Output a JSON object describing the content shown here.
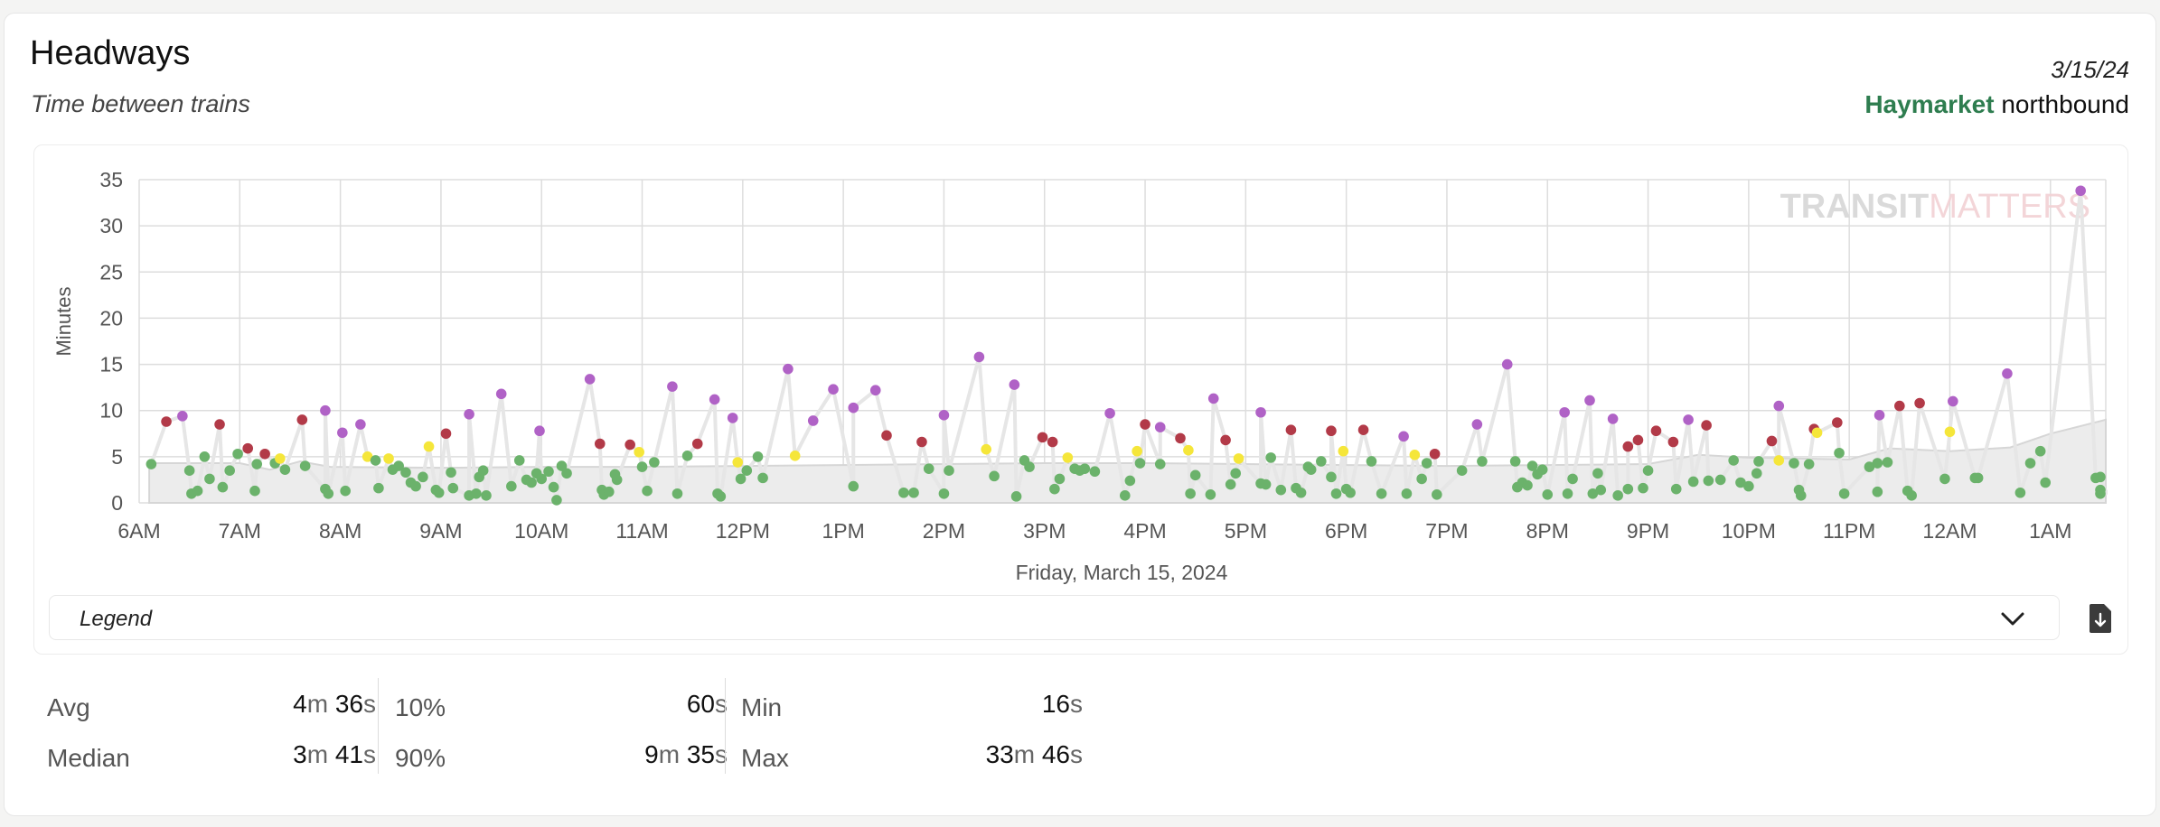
{
  "header": {
    "title": "Headways",
    "subtitle": "Time between trains",
    "date": "3/15/24",
    "station": "Haymarket",
    "direction": "northbound"
  },
  "watermark": {
    "strong": "TRANSIT",
    "light": "MATTERS"
  },
  "legend": {
    "label": "Legend"
  },
  "colors": {
    "green": "#6bb26b",
    "yellow": "#f5e63a",
    "red": "#b23a48",
    "purple": "#b062c6",
    "line": "#e4e4e4",
    "band": "#ececec",
    "benchmark": "#cfcfcf",
    "accent": "#2e7d4f"
  },
  "icons": {
    "legend_toggle": "chevron-down-icon",
    "download": "file-download-icon"
  },
  "stats": [
    {
      "label": "Avg",
      "value": "4",
      "unit": "m",
      "value2": "36",
      "unit2": "s"
    },
    {
      "label": "Median",
      "value": "3",
      "unit": "m",
      "value2": "41",
      "unit2": "s"
    },
    {
      "label": "10%",
      "value": "60",
      "unit": "s"
    },
    {
      "label": "90%",
      "value": "9",
      "unit": "m",
      "value2": "35",
      "unit2": "s"
    },
    {
      "label": "Min",
      "value": "16",
      "unit": "s"
    },
    {
      "label": "Max",
      "value": "33",
      "unit": "m",
      "value2": "46",
      "unit2": "s"
    }
  ],
  "chart_data": {
    "type": "scatter",
    "title": "",
    "xlabel": "Friday, March 15, 2024",
    "ylabel": "Minutes",
    "x_ticks": [
      "6AM",
      "7AM",
      "8AM",
      "9AM",
      "10AM",
      "11AM",
      "12PM",
      "1PM",
      "2PM",
      "3PM",
      "4PM",
      "5PM",
      "6PM",
      "7PM",
      "8PM",
      "9PM",
      "10PM",
      "11PM",
      "12AM",
      "1AM"
    ],
    "y_ticks": [
      0,
      5,
      10,
      15,
      20,
      25,
      30,
      35
    ],
    "xlim": [
      6.0,
      25.55
    ],
    "ylim": [
      0,
      35
    ],
    "grid": true,
    "legend": "collapsed-below",
    "benchmark": [
      [
        6.1,
        4.3
      ],
      [
        7.0,
        4.3
      ],
      [
        7.3,
        3.6
      ],
      [
        7.6,
        4.5
      ],
      [
        7.9,
        3.9
      ],
      [
        9.0,
        3.8
      ],
      [
        10.0,
        3.9
      ],
      [
        11.0,
        3.9
      ],
      [
        12.0,
        4.0
      ],
      [
        13.0,
        4.1
      ],
      [
        14.0,
        4.2
      ],
      [
        15.0,
        4.3
      ],
      [
        16.0,
        4.3
      ],
      [
        17.0,
        4.2
      ],
      [
        18.0,
        4.1
      ],
      [
        19.0,
        4.0
      ],
      [
        20.0,
        4.1
      ],
      [
        21.0,
        4.2
      ],
      [
        21.5,
        5.2
      ],
      [
        22.0,
        4.9
      ],
      [
        23.0,
        4.7
      ],
      [
        23.4,
        5.9
      ],
      [
        24.0,
        5.6
      ],
      [
        24.6,
        6.0
      ],
      [
        25.0,
        7.5
      ],
      [
        25.55,
        9.0
      ]
    ],
    "series": [
      {
        "name": "Green",
        "color": "green",
        "points": [
          [
            6.12,
            4.2
          ],
          [
            6.5,
            3.5
          ],
          [
            6.52,
            1.0
          ],
          [
            6.58,
            1.3
          ],
          [
            6.65,
            5.0
          ],
          [
            6.7,
            2.6
          ],
          [
            6.83,
            1.7
          ],
          [
            6.9,
            3.5
          ],
          [
            6.98,
            5.3
          ],
          [
            7.15,
            1.3
          ],
          [
            7.17,
            4.2
          ],
          [
            7.35,
            4.3
          ],
          [
            7.45,
            3.6
          ],
          [
            7.65,
            4.0
          ],
          [
            7.85,
            1.5
          ],
          [
            7.88,
            1.0
          ],
          [
            8.05,
            1.3
          ],
          [
            8.35,
            4.6
          ],
          [
            8.38,
            1.6
          ],
          [
            8.52,
            3.6
          ],
          [
            8.58,
            4.0
          ],
          [
            8.65,
            3.3
          ],
          [
            8.7,
            2.2
          ],
          [
            8.75,
            1.8
          ],
          [
            8.82,
            2.8
          ],
          [
            8.95,
            1.4
          ],
          [
            8.98,
            1.1
          ],
          [
            9.1,
            3.3
          ],
          [
            9.12,
            1.6
          ],
          [
            9.28,
            0.8
          ],
          [
            9.35,
            1.0
          ],
          [
            9.38,
            2.8
          ],
          [
            9.42,
            3.5
          ],
          [
            9.45,
            0.8
          ],
          [
            9.7,
            1.8
          ],
          [
            9.78,
            4.6
          ],
          [
            9.85,
            2.5
          ],
          [
            9.9,
            2.2
          ],
          [
            9.95,
            3.2
          ],
          [
            10.0,
            2.6
          ],
          [
            10.07,
            3.4
          ],
          [
            10.12,
            1.7
          ],
          [
            10.15,
            0.3
          ],
          [
            10.2,
            4.0
          ],
          [
            10.25,
            3.2
          ],
          [
            10.6,
            1.4
          ],
          [
            10.62,
            0.9
          ],
          [
            10.67,
            1.2
          ],
          [
            10.73,
            3.1
          ],
          [
            10.75,
            2.5
          ],
          [
            11.0,
            3.9
          ],
          [
            11.05,
            1.3
          ],
          [
            11.12,
            4.4
          ],
          [
            11.35,
            1.0
          ],
          [
            11.45,
            5.1
          ],
          [
            11.75,
            1.0
          ],
          [
            11.78,
            0.7
          ],
          [
            11.98,
            2.6
          ],
          [
            12.04,
            3.5
          ],
          [
            12.15,
            5.0
          ],
          [
            12.2,
            2.7
          ],
          [
            13.1,
            1.8
          ],
          [
            13.6,
            1.1
          ],
          [
            13.7,
            1.1
          ],
          [
            13.85,
            3.7
          ],
          [
            14.0,
            1.0
          ],
          [
            14.05,
            3.5
          ],
          [
            14.5,
            2.9
          ],
          [
            14.72,
            0.7
          ],
          [
            14.8,
            4.6
          ],
          [
            14.85,
            3.9
          ],
          [
            15.1,
            1.5
          ],
          [
            15.15,
            2.6
          ],
          [
            15.3,
            3.7
          ],
          [
            15.35,
            3.5
          ],
          [
            15.4,
            3.7
          ],
          [
            15.5,
            3.4
          ],
          [
            15.8,
            0.8
          ],
          [
            15.85,
            2.4
          ],
          [
            15.95,
            4.3
          ],
          [
            16.15,
            4.2
          ],
          [
            16.45,
            1.0
          ],
          [
            16.5,
            3.0
          ],
          [
            16.65,
            0.9
          ],
          [
            16.85,
            2.0
          ],
          [
            16.9,
            3.2
          ],
          [
            17.15,
            2.1
          ],
          [
            17.2,
            2.0
          ],
          [
            17.25,
            4.9
          ],
          [
            17.35,
            1.4
          ],
          [
            17.5,
            1.6
          ],
          [
            17.55,
            1.1
          ],
          [
            17.62,
            3.9
          ],
          [
            17.65,
            3.6
          ],
          [
            17.75,
            4.5
          ],
          [
            17.85,
            2.8
          ],
          [
            17.9,
            1.0
          ],
          [
            18.0,
            1.5
          ],
          [
            18.04,
            1.1
          ],
          [
            18.25,
            4.5
          ],
          [
            18.35,
            1.0
          ],
          [
            18.6,
            1.0
          ],
          [
            18.75,
            2.6
          ],
          [
            18.8,
            4.3
          ],
          [
            18.9,
            0.9
          ],
          [
            19.15,
            3.5
          ],
          [
            19.35,
            4.5
          ],
          [
            19.68,
            4.5
          ],
          [
            19.7,
            1.7
          ],
          [
            19.75,
            2.2
          ],
          [
            19.8,
            1.9
          ],
          [
            19.85,
            4.0
          ],
          [
            19.9,
            3.1
          ],
          [
            19.95,
            3.6
          ],
          [
            20.0,
            0.9
          ],
          [
            20.2,
            1.0
          ],
          [
            20.25,
            2.6
          ],
          [
            20.45,
            1.0
          ],
          [
            20.5,
            3.2
          ],
          [
            20.53,
            1.4
          ],
          [
            20.7,
            0.8
          ],
          [
            20.8,
            1.5
          ],
          [
            20.95,
            1.6
          ],
          [
            21.0,
            3.5
          ],
          [
            21.28,
            1.5
          ],
          [
            21.45,
            2.3
          ],
          [
            21.6,
            2.4
          ],
          [
            21.72,
            2.5
          ],
          [
            21.85,
            4.6
          ],
          [
            21.92,
            2.2
          ],
          [
            22.0,
            1.8
          ],
          [
            22.08,
            3.2
          ],
          [
            22.1,
            4.5
          ],
          [
            22.45,
            4.3
          ],
          [
            22.5,
            1.4
          ],
          [
            22.52,
            0.8
          ],
          [
            22.6,
            4.2
          ],
          [
            22.9,
            5.4
          ],
          [
            22.95,
            1.0
          ],
          [
            23.2,
            3.9
          ],
          [
            23.28,
            4.3
          ],
          [
            23.28,
            1.2
          ],
          [
            23.38,
            4.4
          ],
          [
            23.58,
            1.3
          ],
          [
            23.62,
            0.8
          ],
          [
            23.95,
            2.6
          ],
          [
            24.25,
            2.7
          ],
          [
            24.28,
            2.7
          ],
          [
            24.7,
            1.1
          ],
          [
            24.8,
            4.3
          ],
          [
            24.9,
            5.6
          ],
          [
            24.95,
            2.2
          ],
          [
            25.45,
            2.7
          ],
          [
            25.5,
            2.8
          ],
          [
            25.95,
            1.0
          ],
          [
            26.0,
            1.4
          ]
        ]
      },
      {
        "name": "Yellow",
        "color": "yellow",
        "points": [
          [
            7.4,
            4.8
          ],
          [
            8.27,
            5.0
          ],
          [
            8.48,
            4.8
          ],
          [
            8.88,
            6.1
          ],
          [
            10.97,
            5.5
          ],
          [
            11.95,
            4.4
          ],
          [
            12.52,
            5.1
          ],
          [
            14.42,
            5.8
          ],
          [
            15.23,
            4.9
          ],
          [
            15.92,
            5.6
          ],
          [
            16.43,
            5.7
          ],
          [
            16.93,
            4.8
          ],
          [
            17.97,
            5.6
          ],
          [
            18.68,
            5.2
          ],
          [
            22.3,
            4.6
          ],
          [
            22.68,
            7.6
          ],
          [
            24.0,
            7.7
          ]
        ]
      },
      {
        "name": "Red",
        "color": "red",
        "points": [
          [
            6.27,
            8.8
          ],
          [
            6.8,
            8.5
          ],
          [
            7.08,
            5.9
          ],
          [
            7.25,
            5.3
          ],
          [
            7.62,
            9.0
          ],
          [
            9.05,
            7.5
          ],
          [
            10.58,
            6.4
          ],
          [
            10.88,
            6.3
          ],
          [
            11.55,
            6.4
          ],
          [
            13.43,
            7.3
          ],
          [
            13.78,
            6.6
          ],
          [
            14.98,
            7.1
          ],
          [
            15.08,
            6.6
          ],
          [
            16.0,
            8.5
          ],
          [
            16.35,
            7.0
          ],
          [
            16.8,
            6.8
          ],
          [
            17.45,
            7.9
          ],
          [
            17.85,
            7.8
          ],
          [
            18.17,
            7.9
          ],
          [
            18.88,
            5.3
          ],
          [
            20.8,
            6.1
          ],
          [
            20.9,
            6.8
          ],
          [
            21.08,
            7.8
          ],
          [
            21.25,
            6.6
          ],
          [
            21.58,
            8.4
          ],
          [
            22.23,
            6.7
          ],
          [
            22.65,
            8.0
          ],
          [
            22.88,
            8.7
          ],
          [
            23.5,
            10.5
          ],
          [
            23.7,
            10.8
          ]
        ]
      },
      {
        "name": "Purple",
        "color": "purple",
        "points": [
          [
            6.43,
            9.4
          ],
          [
            7.85,
            10.0
          ],
          [
            8.02,
            7.6
          ],
          [
            8.2,
            8.5
          ],
          [
            9.28,
            9.6
          ],
          [
            9.6,
            11.8
          ],
          [
            9.98,
            7.8
          ],
          [
            10.48,
            13.4
          ],
          [
            11.3,
            12.6
          ],
          [
            11.72,
            11.2
          ],
          [
            11.9,
            9.2
          ],
          [
            12.45,
            14.5
          ],
          [
            12.7,
            8.9
          ],
          [
            12.9,
            12.3
          ],
          [
            13.1,
            10.3
          ],
          [
            13.32,
            12.2
          ],
          [
            14.0,
            9.5
          ],
          [
            14.35,
            15.8
          ],
          [
            14.7,
            12.8
          ],
          [
            15.65,
            9.7
          ],
          [
            16.15,
            8.2
          ],
          [
            16.68,
            11.3
          ],
          [
            17.15,
            9.8
          ],
          [
            18.57,
            7.2
          ],
          [
            19.3,
            8.5
          ],
          [
            19.6,
            15.0
          ],
          [
            20.17,
            9.8
          ],
          [
            20.42,
            11.1
          ],
          [
            20.65,
            9.1
          ],
          [
            21.4,
            9.0
          ],
          [
            22.3,
            10.5
          ],
          [
            23.3,
            9.5
          ],
          [
            24.03,
            11.0
          ],
          [
            24.57,
            14.0
          ],
          [
            25.3,
            33.8
          ]
        ]
      }
    ]
  }
}
